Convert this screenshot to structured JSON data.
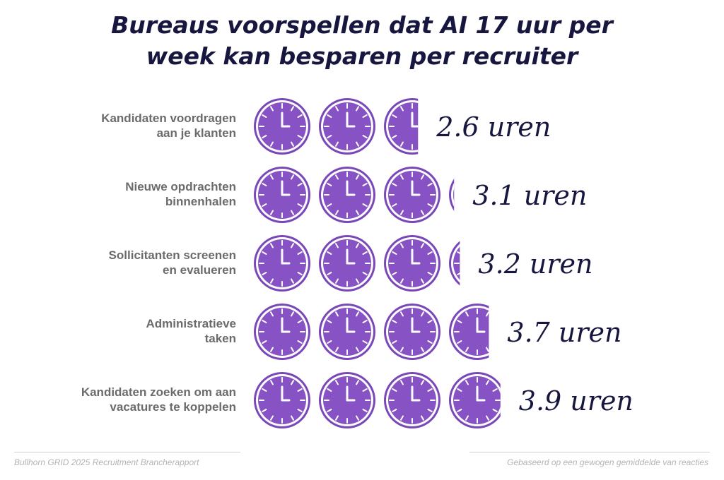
{
  "title": {
    "line1": "Bureaus voorspellen dat AI 17 uur per",
    "line2": "week kan besparen per recruiter"
  },
  "chart_data": {
    "type": "bar",
    "categories": [
      [
        "Kandidaten voordragen",
        "aan je klanten"
      ],
      [
        "Nieuwe opdrachten",
        "binnenhalen"
      ],
      [
        "Sollicitanten screenen",
        "en evalueren"
      ],
      [
        "Administratieve",
        "taken"
      ],
      [
        "Kandidaten zoeken om aan",
        "vacatures te koppelen"
      ]
    ],
    "values": [
      2.6,
      3.1,
      3.2,
      3.7,
      3.9
    ],
    "value_labels": [
      "2.6 uren",
      "3.1 uren",
      "3.2 uren",
      "3.7 uren",
      "3.9 uren"
    ],
    "unit": "uren",
    "mark": "clock-icon",
    "colors": {
      "clock_fill": "#8752c3",
      "clock_ring": "#7a47b8",
      "value_text": "#16163f",
      "label_text": "#6b6b6b"
    }
  },
  "footer": {
    "source": "Bullhorn GRID 2025 Recruitment Brancherapport",
    "note": "Gebaseerd op een gewogen gemiddelde van reacties"
  }
}
